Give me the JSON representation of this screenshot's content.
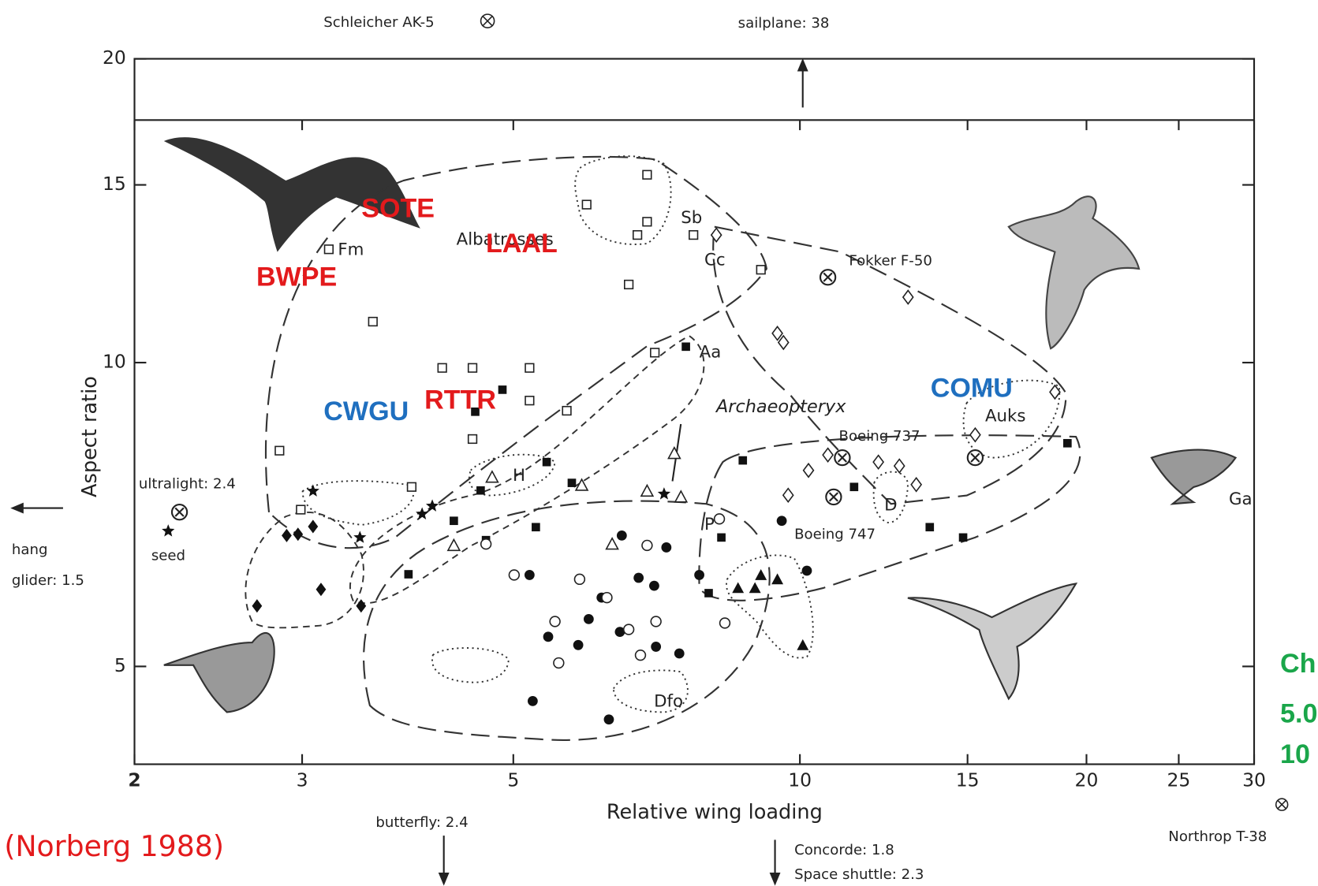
{
  "chart_data": {
    "type": "scatter",
    "xlabel": "Relative wing loading",
    "ylabel": "Aspect ratio",
    "xlim": [
      2,
      30
    ],
    "ylim": [
      4,
      20
    ],
    "xticks": [
      2,
      3,
      5,
      10,
      15,
      20,
      25,
      30
    ],
    "yticks": [
      5,
      10,
      15,
      20
    ],
    "log_x": true,
    "log_y": true,
    "series": [
      {
        "marker": "open-square",
        "color": "#222",
        "x": [
          3.2,
          3.56,
          2.84,
          2.99,
          4.21,
          4.53,
          5.2,
          5.2,
          5.69,
          4.53,
          5.97,
          6.91,
          6.91,
          7.73,
          9.1,
          6.61,
          7.04,
          3.91,
          6.75
        ],
        "values": [
          12.95,
          10.98,
          8.18,
          7.15,
          9.88,
          9.88,
          9.88,
          9.17,
          8.96,
          8.4,
          14.34,
          15.35,
          13.79,
          13.38,
          12.36,
          11.95,
          10.23,
          7.53,
          13.38
        ]
      },
      {
        "marker": "filled-circle",
        "color": "#111",
        "x": [
          5.2,
          5.44,
          5.85,
          6.0,
          6.19,
          6.47,
          6.77,
          7.03,
          7.24,
          6.5,
          7.84,
          9.57,
          10.17,
          5.24,
          6.3,
          7.47,
          7.06
        ],
        "values": [
          6.16,
          5.35,
          5.25,
          5.57,
          5.85,
          5.41,
          6.12,
          6.01,
          6.56,
          6.74,
          6.16,
          6.97,
          6.22,
          4.62,
          4.43,
          5.15,
          5.23
        ]
      },
      {
        "marker": "filled-square",
        "color": "#111",
        "x": [
          4.87,
          4.56,
          5.42,
          5.76,
          4.62,
          4.33,
          4.68,
          5.28,
          3.88,
          7.59,
          8.71,
          11.4,
          13.69,
          14.84,
          19.1,
          8.27,
          8.02
        ],
        "values": [
          9.4,
          8.94,
          7.97,
          7.6,
          7.47,
          6.97,
          6.67,
          6.87,
          6.17,
          10.37,
          8.0,
          7.53,
          6.87,
          6.71,
          8.32,
          6.71,
          5.91
        ]
      },
      {
        "marker": "open-diamond",
        "color": "#222",
        "x": [
          8.17,
          9.47,
          9.61,
          12.99,
          18.53,
          15.28,
          10.7,
          10.21,
          12.09,
          12.72,
          9.72,
          13.25
        ],
        "values": [
          13.38,
          10.69,
          10.47,
          11.61,
          9.35,
          8.48,
          8.1,
          7.82,
          7.97,
          7.9,
          7.39,
          7.57
        ]
      },
      {
        "marker": "filled-diamond",
        "color": "#111",
        "x": [
          2.69,
          2.89,
          2.97,
          3.08,
          3.14,
          3.46
        ],
        "values": [
          5.74,
          6.74,
          6.76,
          6.88,
          5.96,
          5.74
        ]
      },
      {
        "marker": "filled-triangle",
        "color": "#111",
        "x": [
          8.61,
          8.97,
          9.1,
          9.47,
          10.07
        ],
        "values": [
          5.98,
          5.98,
          6.16,
          6.1,
          5.25
        ]
      },
      {
        "marker": "open-circle",
        "color": "#222",
        "x": [
          5.53,
          5.58,
          5.87,
          6.27,
          6.61,
          7.06,
          6.8,
          4.68,
          5.01,
          8.34,
          6.91,
          8.23
        ],
        "values": [
          5.54,
          5.04,
          6.1,
          5.85,
          5.44,
          5.54,
          5.13,
          6.61,
          6.16,
          5.52,
          6.59,
          7.0
        ]
      },
      {
        "marker": "star",
        "color": "#111",
        "x": [
          3.08,
          3.45,
          4.01,
          4.11,
          7.2,
          2.17
        ],
        "values": [
          7.46,
          6.71,
          7.08,
          7.21,
          7.41,
          6.81
        ]
      },
      {
        "marker": "open-triangle",
        "color": "#222",
        "x": [
          4.33,
          4.75,
          5.9,
          6.91,
          7.38,
          7.5,
          6.35
        ],
        "values": [
          6.59,
          7.7,
          7.56,
          7.46,
          8.13,
          7.36,
          6.61
        ]
      },
      {
        "marker": "circled-x",
        "color": "#222",
        "x": [
          2.23,
          10.7,
          11.08,
          10.85,
          15.28
        ],
        "values": [
          7.11,
          12.15,
          8.05,
          7.36,
          8.05
        ]
      }
    ],
    "labels": [
      {
        "text": "Schleicher  AK-5",
        "style": "small"
      },
      {
        "text": "sailplane:  38",
        "style": "small"
      },
      {
        "text": "ultralight:  2.4",
        "style": "small"
      },
      {
        "text": "hang",
        "style": "small"
      },
      {
        "text": "glider:  1.5",
        "style": "small"
      },
      {
        "text": "seed",
        "style": "small"
      },
      {
        "text": "butterfly:  2.4",
        "style": "small"
      },
      {
        "text": "Concorde:  1.8",
        "style": "small"
      },
      {
        "text": "Space  shuttle:  2.3",
        "style": "small"
      },
      {
        "text": "Northrop  T-38",
        "style": "small"
      },
      {
        "text": "Fokker  F-50",
        "style": "small"
      },
      {
        "text": "Boeing  737",
        "style": "small"
      },
      {
        "text": "Boeing  747",
        "style": "small"
      },
      {
        "text": "Archaeopteryx",
        "style": "italic"
      },
      {
        "text": "Albatrosses",
        "style": "group"
      },
      {
        "text": "Auks",
        "style": "group"
      },
      {
        "text": "Fm",
        "style": "group"
      },
      {
        "text": "Sb",
        "style": "group"
      },
      {
        "text": "Cc",
        "style": "group"
      },
      {
        "text": "Aa",
        "style": "group"
      },
      {
        "text": "H",
        "style": "group"
      },
      {
        "text": "P",
        "style": "group"
      },
      {
        "text": "D",
        "style": "group"
      },
      {
        "text": "Dfo",
        "style": "group"
      },
      {
        "text": "Ga",
        "style": "group"
      }
    ],
    "highlights": [
      {
        "text": "SOTE",
        "color": "#e31a1c"
      },
      {
        "text": "LAAL",
        "color": "#e31a1c"
      },
      {
        "text": "BWPE",
        "color": "#e31a1c"
      },
      {
        "text": "RTTR",
        "color": "#e31a1c"
      },
      {
        "text": "CWGU",
        "color": "#1f6fbf"
      },
      {
        "text": "COMU",
        "color": "#1f6fbf"
      },
      {
        "text": "Ch",
        "color": "#1aa64a"
      },
      {
        "text": "5.0",
        "color": "#1aa64a"
      },
      {
        "text": "10",
        "color": "#1aa64a"
      }
    ],
    "source": "(Norberg 1988)",
    "source_color": "#e31a1c"
  }
}
